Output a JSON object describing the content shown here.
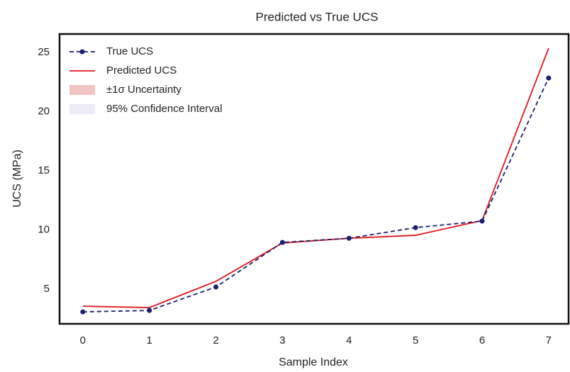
{
  "chart_data": {
    "type": "line",
    "title": "Predicted vs True UCS",
    "x_label": "Sample Index",
    "y_label": "UCS (MPa)",
    "x": [
      0,
      1,
      2,
      3,
      4,
      5,
      6,
      7
    ],
    "series": [
      {
        "name": "True UCS",
        "color": "#1a1f6e",
        "style": "dashed",
        "markers": true,
        "values": [
          3.08,
          3.2,
          5.18,
          8.95,
          9.3,
          10.2,
          10.75,
          22.84
        ]
      },
      {
        "name": "Predicted UCS",
        "color": "#e0141e",
        "style": "solid",
        "markers": false,
        "values": [
          3.56,
          3.44,
          5.66,
          8.9,
          9.3,
          9.55,
          10.8,
          25.36
        ]
      }
    ],
    "bands": [
      {
        "name": "±1σ Uncertainty",
        "color": "#f2c4c4"
      },
      {
        "name": "95% Confidence Interval",
        "color": "#ecebf7"
      }
    ],
    "xlim": [
      -0.35,
      7.3
    ],
    "ylim": [
      2.07,
      26.56
    ],
    "xticks": [
      0,
      1,
      2,
      3,
      4,
      5,
      6,
      7
    ],
    "yticks": [
      5,
      10,
      15,
      20,
      25
    ],
    "grid": false,
    "legend": "upper left"
  }
}
